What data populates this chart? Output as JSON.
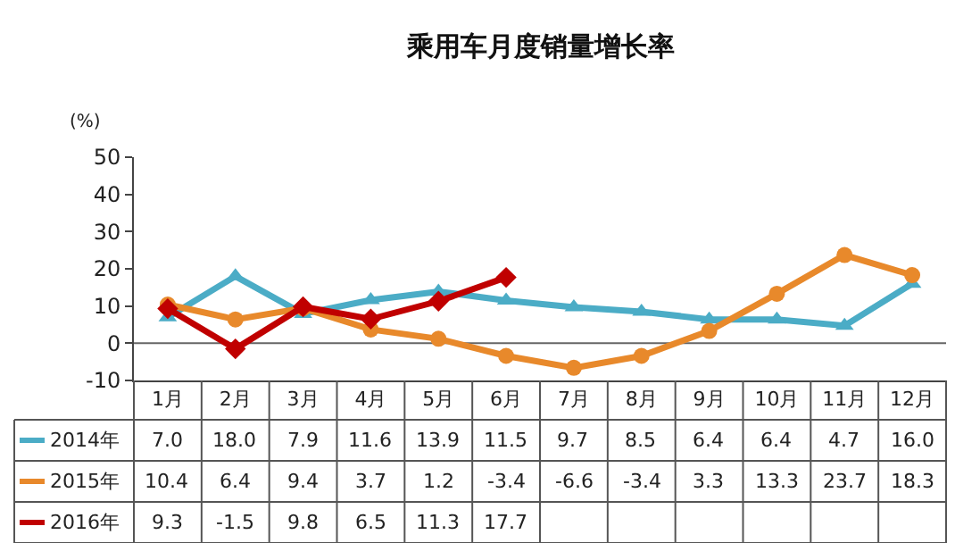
{
  "chart_data": {
    "type": "line",
    "title": "乘用车月度销量增长率",
    "ylabel": "(%)",
    "categories": [
      "1月",
      "2月",
      "3月",
      "4月",
      "5月",
      "6月",
      "7月",
      "8月",
      "9月",
      "10月",
      "11月",
      "12月"
    ],
    "series": [
      {
        "name": "2014年",
        "color": "#4bacc6",
        "marker": "triangle",
        "values": [
          7.0,
          18.0,
          7.9,
          11.6,
          13.9,
          11.5,
          9.7,
          8.5,
          6.4,
          6.4,
          4.7,
          16.0
        ],
        "value_labels": [
          "7.0",
          "18.0",
          "7.9",
          "11.6",
          "13.9",
          "11.5",
          "9.7",
          "8.5",
          "6.4",
          "6.4",
          "4.7",
          "16.0"
        ]
      },
      {
        "name": "2015年",
        "color": "#e8892b",
        "marker": "circle",
        "values": [
          10.4,
          6.4,
          9.4,
          3.7,
          1.2,
          -3.4,
          -6.6,
          -3.4,
          3.3,
          13.3,
          23.7,
          18.3
        ],
        "value_labels": [
          "10.4",
          "6.4",
          "9.4",
          "3.7",
          "1.2",
          "-3.4",
          "-6.6",
          "-3.4",
          "3.3",
          "13.3",
          "23.7",
          "18.3"
        ]
      },
      {
        "name": "2016年",
        "color": "#c00000",
        "marker": "diamond",
        "values": [
          9.3,
          -1.5,
          9.8,
          6.5,
          11.3,
          17.7,
          null,
          null,
          null,
          null,
          null,
          null
        ],
        "value_labels": [
          "9.3",
          "-1.5",
          "9.8",
          "6.5",
          "11.3",
          "17.7",
          null,
          null,
          null,
          null,
          null,
          null
        ]
      }
    ],
    "ylim": [
      -10,
      50
    ],
    "yticks": [
      -10,
      0,
      10,
      20,
      30,
      40,
      50
    ],
    "grid": false,
    "legend": "bottom left",
    "ref_lines": [
      {
        "axis": "y",
        "value": 0,
        "color": "#666666"
      }
    ]
  }
}
